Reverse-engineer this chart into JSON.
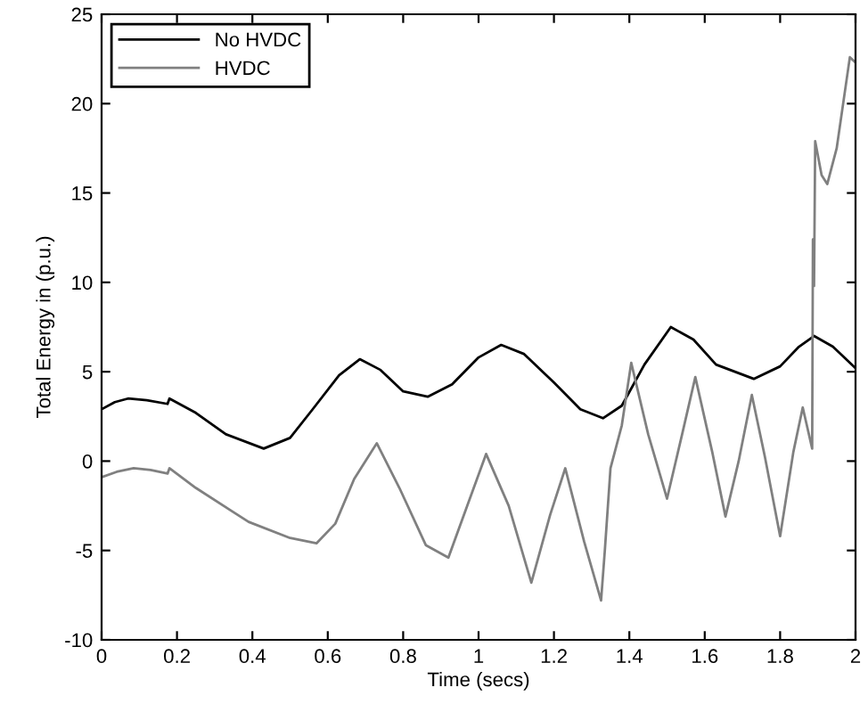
{
  "chart_data": {
    "type": "line",
    "xlabel": "Time (secs)",
    "ylabel": "Total Energy in (p.u.)",
    "xlim": [
      0,
      2
    ],
    "ylim": [
      -10,
      25
    ],
    "xticks": [
      0,
      0.2,
      0.4,
      0.6,
      0.8,
      1,
      1.2,
      1.4,
      1.6,
      1.8,
      2
    ],
    "yticks": [
      -10,
      -5,
      0,
      5,
      10,
      15,
      20,
      25
    ],
    "grid": false,
    "legend": "top left",
    "marker": "none",
    "line_style": "solid",
    "series": [
      {
        "name": "No HVDC",
        "color": "#000000",
        "x": [
          0,
          0.035,
          0.07,
          0.12,
          0.175,
          0.18,
          0.25,
          0.33,
          0.43,
          0.5,
          0.56,
          0.63,
          0.685,
          0.74,
          0.8,
          0.865,
          0.93,
          1.0,
          1.06,
          1.12,
          1.2,
          1.27,
          1.33,
          1.38,
          1.44,
          1.51,
          1.57,
          1.63,
          1.73,
          1.8,
          1.85,
          1.89,
          1.94,
          2.0
        ],
        "values": [
          2.9,
          3.3,
          3.5,
          3.4,
          3.2,
          3.5,
          2.7,
          1.5,
          0.7,
          1.3,
          2.9,
          4.8,
          5.7,
          5.1,
          3.9,
          3.6,
          4.3,
          5.8,
          6.5,
          6.0,
          4.4,
          2.9,
          2.4,
          3.1,
          5.4,
          7.5,
          6.8,
          5.4,
          4.6,
          5.3,
          6.4,
          7.0,
          6.4,
          5.2
        ]
      },
      {
        "name": "HVDC",
        "color": "#808080",
        "x": [
          0,
          0.04,
          0.085,
          0.13,
          0.175,
          0.18,
          0.25,
          0.39,
          0.5,
          0.57,
          0.62,
          0.67,
          0.73,
          0.79,
          0.86,
          0.92,
          0.97,
          1.02,
          1.08,
          1.14,
          1.19,
          1.23,
          1.28,
          1.325,
          1.335,
          1.35,
          1.38,
          1.405,
          1.45,
          1.5,
          1.54,
          1.575,
          1.62,
          1.655,
          1.69,
          1.725,
          1.76,
          1.8,
          1.835,
          1.86,
          1.885,
          1.887,
          1.89,
          1.893,
          1.91,
          1.925,
          1.95,
          1.985,
          2.0
        ],
        "values": [
          -0.9,
          -0.6,
          -0.4,
          -0.5,
          -0.7,
          -0.4,
          -1.5,
          -3.4,
          -4.3,
          -4.6,
          -3.5,
          -1.0,
          1.0,
          -1.5,
          -4.7,
          -5.4,
          -2.5,
          0.4,
          -2.5,
          -6.8,
          -3.0,
          -0.4,
          -4.5,
          -7.8,
          -5.0,
          -0.4,
          2.0,
          5.5,
          1.5,
          -2.1,
          1.5,
          4.7,
          0.5,
          -3.1,
          0.0,
          3.7,
          0.2,
          -4.2,
          0.5,
          3.0,
          0.7,
          12.4,
          9.8,
          17.9,
          16.0,
          15.5,
          17.5,
          22.6,
          22.3
        ]
      }
    ]
  }
}
